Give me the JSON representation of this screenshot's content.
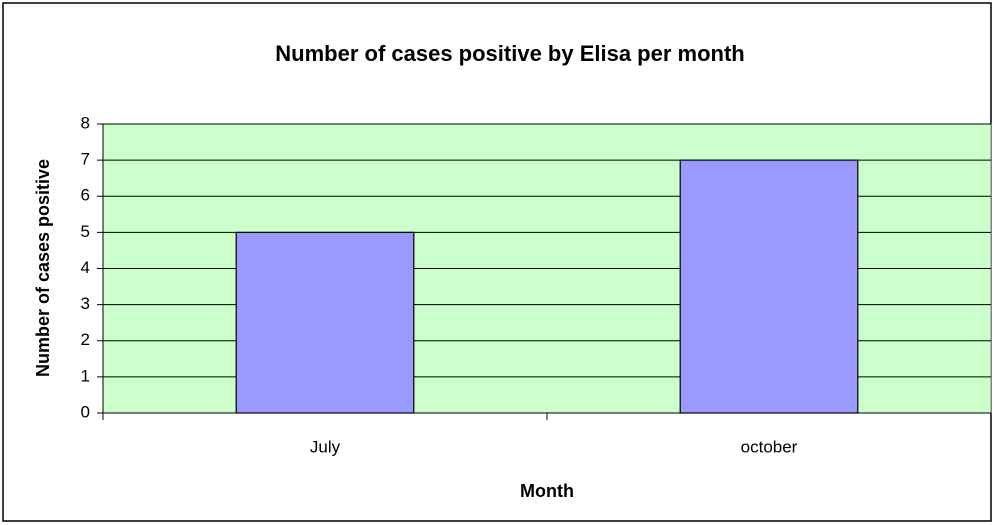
{
  "chart_data": {
    "type": "bar",
    "title": "Number of cases positive by Elisa per month",
    "x_label": "Month",
    "y_label": "Number of cases positive",
    "categories": [
      "July",
      "october"
    ],
    "values": [
      5,
      7
    ],
    "color": "#9999ff",
    "plot_background": "#ccffcc",
    "ylim": [
      0,
      8
    ],
    "yticks": [
      0,
      1,
      2,
      3,
      4,
      5,
      6,
      7,
      8
    ],
    "grid": true
  }
}
